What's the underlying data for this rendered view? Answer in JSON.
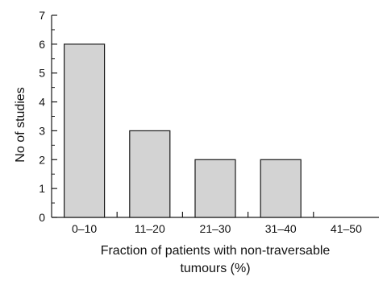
{
  "chart_data": {
    "type": "bar",
    "categories": [
      "0–10",
      "11–20",
      "21–30",
      "31–40",
      "41–50"
    ],
    "values": [
      6,
      3,
      2,
      2,
      0
    ],
    "title": "",
    "xlabel_lines": [
      "Fraction of patients with non-traversable",
      "tumours (%)"
    ],
    "ylabel": "No of studies",
    "ylim": [
      0,
      7
    ],
    "yticks": [
      "0",
      "1",
      "2",
      "3",
      "4",
      "5",
      "6",
      "7"
    ],
    "grid": false,
    "legend": "none",
    "colors": {
      "bar_fill": "#d3d3d3",
      "bar_stroke": "#1a1a1a",
      "axis": "#1a1a1a"
    }
  }
}
